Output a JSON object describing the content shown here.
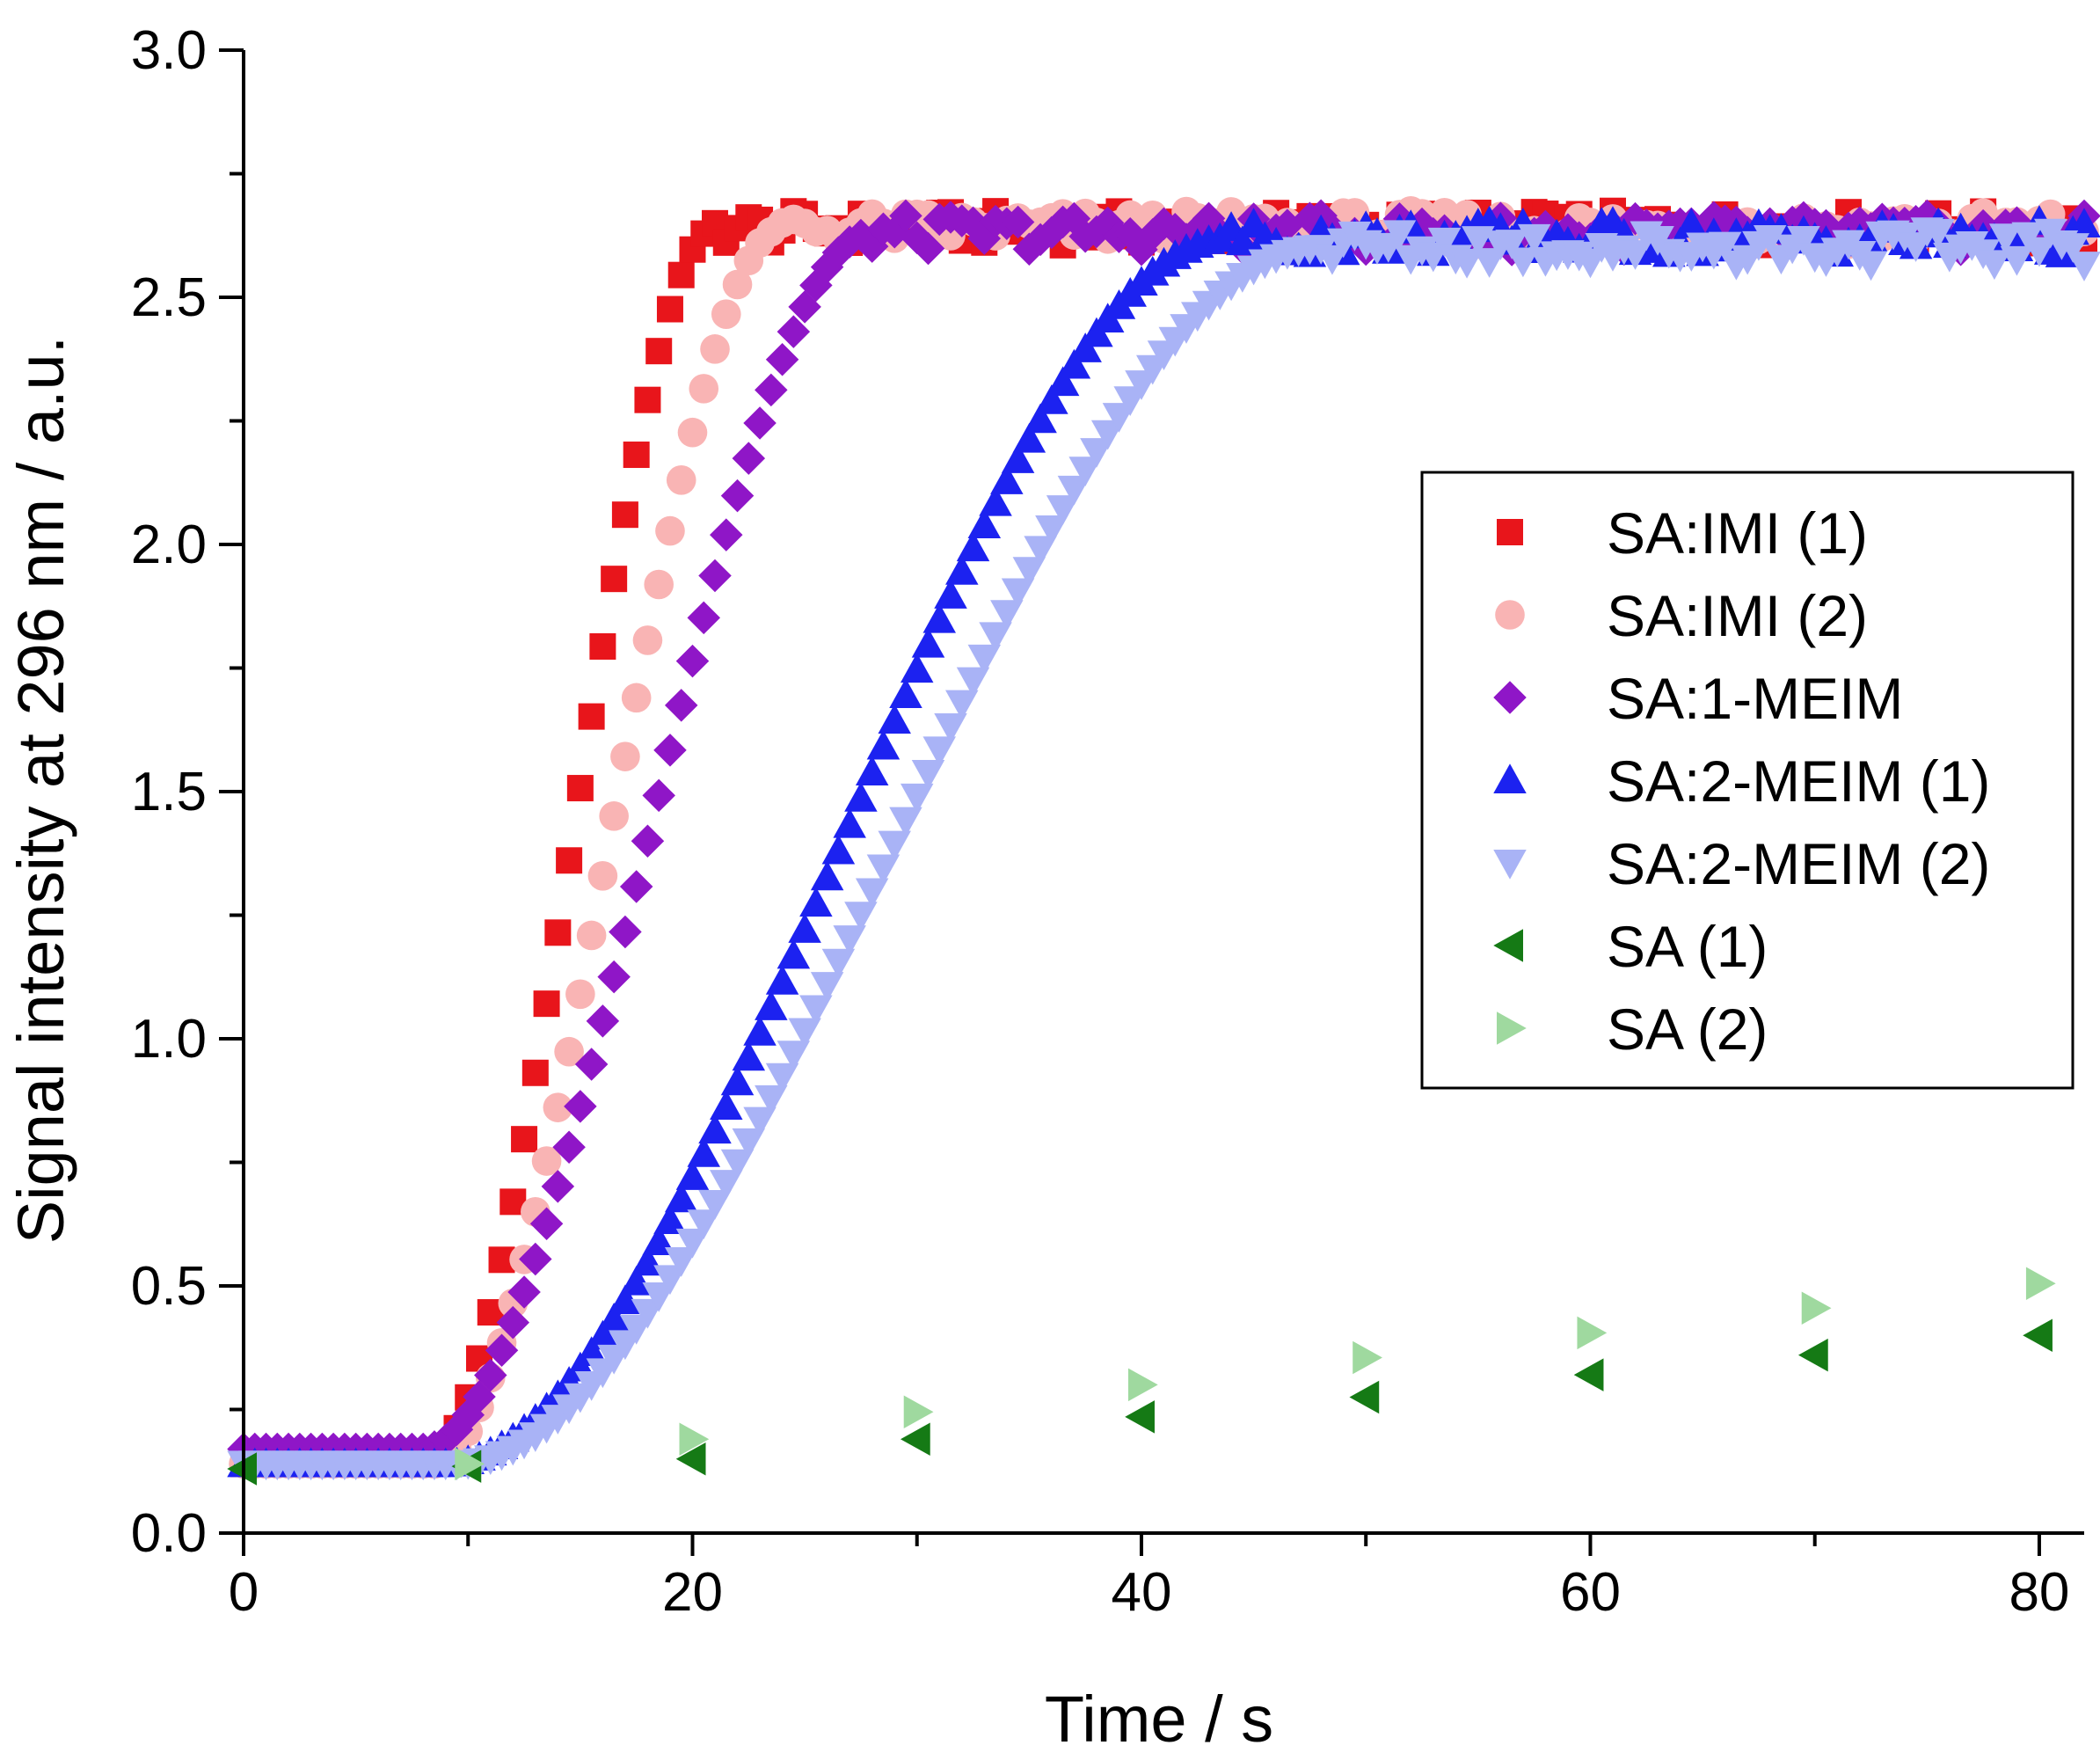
{
  "chart_data": {
    "type": "scatter",
    "title": "",
    "xlabel": "Time / s",
    "ylabel": "Signal intensity at 296 nm / a.u.",
    "xlim": [
      0,
      82
    ],
    "ylim": [
      0,
      3.0
    ],
    "x_ticks": [
      "0",
      "20",
      "40",
      "60",
      "80"
    ],
    "y_ticks": [
      "0.0",
      "0.5",
      "1.0",
      "1.5",
      "2.0",
      "2.5",
      "3.0"
    ],
    "grid": false,
    "legend_position": "right",
    "series": [
      {
        "name": "SA:IMI (1)",
        "marker": "square",
        "color": "#e8151b",
        "onset": 8.2,
        "plateau_start": 21.0,
        "baseline": 0.14,
        "plateau": 2.64,
        "dt": 0.5,
        "t_end": 82
      },
      {
        "name": "SA:IMI (2)",
        "marker": "circle",
        "color": "#f9b4b4",
        "onset": 8.5,
        "plateau_start": 24.0,
        "baseline": 0.14,
        "plateau": 2.64,
        "dt": 0.5,
        "t_end": 82
      },
      {
        "name": "SA:1-MEIM",
        "marker": "diamond",
        "color": "#8f16c7",
        "onset": 8.0,
        "plateau_start": 28.0,
        "baseline": 0.17,
        "plateau": 2.63,
        "dt": 0.5,
        "t_end": 82
      },
      {
        "name": "SA:2-MEIM (1)",
        "marker": "triangle-up",
        "color": "#1c22f0",
        "onset": 9.0,
        "plateau_start": 44.0,
        "baseline": 0.14,
        "plateau": 2.62,
        "dt": 0.5,
        "t_end": 82
      },
      {
        "name": "SA:2-MEIM (2)",
        "marker": "triangle-down",
        "color": "#a9b3f6",
        "onset": 9.5,
        "plateau_start": 48.0,
        "baseline": 0.14,
        "plateau": 2.6,
        "dt": 0.5,
        "t_end": 82
      },
      {
        "name": "SA (1)",
        "marker": "triangle-left",
        "color": "#157a15",
        "points": [
          [
            0,
            0.13
          ],
          [
            10,
            0.135
          ],
          [
            20,
            0.15
          ],
          [
            30,
            0.19
          ],
          [
            40,
            0.235
          ],
          [
            50,
            0.275
          ],
          [
            60,
            0.32
          ],
          [
            70,
            0.36
          ],
          [
            80,
            0.4
          ]
        ]
      },
      {
        "name": "SA (2)",
        "marker": "triangle-right",
        "color": "#9fd99f",
        "points": [
          [
            10,
            0.14
          ],
          [
            20,
            0.19
          ],
          [
            30,
            0.245
          ],
          [
            40,
            0.3
          ],
          [
            50,
            0.355
          ],
          [
            60,
            0.405
          ],
          [
            70,
            0.455
          ],
          [
            80,
            0.505
          ]
        ]
      }
    ]
  }
}
